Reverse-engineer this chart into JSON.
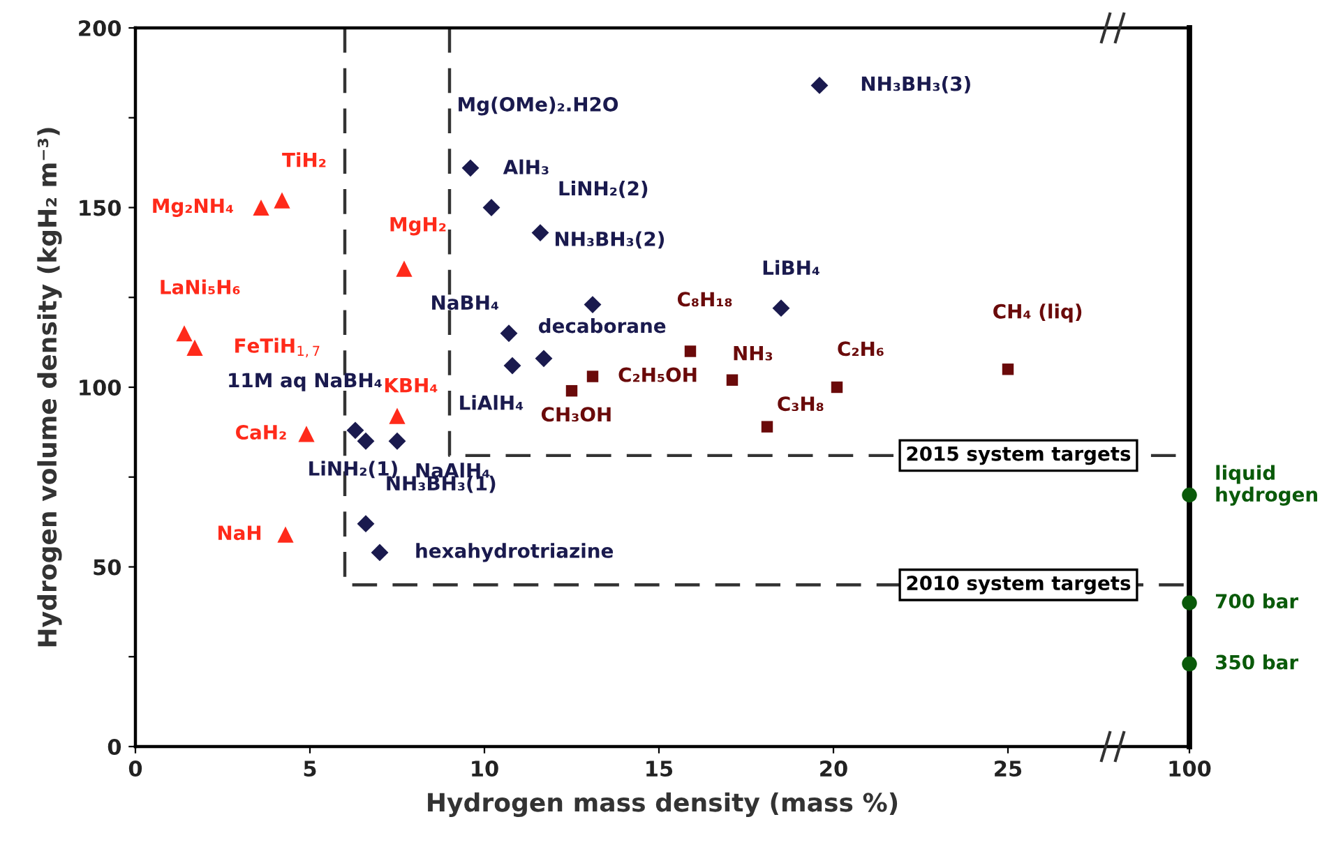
{
  "chart_data": [
    {
      "type": "scatter",
      "xlabel": "Hydrogen mass density (mass %)",
      "ylabel": "Hydrogen volume density (kgH₂ m⁻³)",
      "xlim": [
        0,
        30.2
      ],
      "xticks": [
        0,
        5,
        10,
        15,
        20,
        25
      ],
      "ylim": [
        0,
        200
      ],
      "yticks": [
        0,
        {
          "value": 25,
          "label": null
        },
        50,
        {
          "value": 75,
          "label": null
        },
        100,
        {
          "value": 125,
          "label": null
        },
        150,
        {
          "value": 175,
          "label": null
        },
        200
      ],
      "series": [
        {
          "marker": "triangle",
          "color": "#ff2a1a",
          "x": [
            3.6,
            4.2,
            7.7,
            1.4,
            1.7,
            4.9,
            7.5,
            4.3
          ],
          "values": [
            150,
            152,
            133,
            115,
            111,
            87,
            92,
            59
          ]
        },
        {
          "marker": "diamond",
          "color": "#1a1a4e",
          "x": [
            6.3,
            6.6,
            7.5,
            6.6,
            7.0,
            9.6,
            10.2,
            11.6,
            10.7,
            10.8,
            11.7,
            13.1,
            18.5,
            19.6
          ],
          "values": [
            88,
            85,
            85,
            62,
            54,
            161,
            150,
            143,
            115,
            106,
            108,
            123,
            122,
            184
          ]
        },
        {
          "marker": "square",
          "color": "#6a0a0a",
          "x": [
            12.5,
            13.1,
            15.9,
            17.1,
            18.1,
            20.1,
            25.0
          ],
          "values": [
            99,
            103,
            110,
            102,
            89,
            100,
            105
          ]
        },
        {
          "type": "line",
          "marker": "none",
          "line_style": "dashed",
          "color": "#333333",
          "x": [
            6,
            6,
            30.2
          ],
          "values": [
            200,
            45,
            45
          ]
        },
        {
          "type": "line",
          "marker": "none",
          "line_style": "dashed",
          "color": "#333333",
          "x": [
            9,
            9,
            30.2
          ],
          "values": [
            200,
            81,
            81
          ]
        }
      ],
      "annotations": [
        {
          "text": "Mg₂NH₄",
          "x": 3.6,
          "y": 150
        },
        {
          "text": "TiH₂",
          "x": 4.2,
          "y": 152
        },
        {
          "text": "MgH₂",
          "x": 7.7,
          "y": 133
        },
        {
          "text": "LaNi₅H₆",
          "x": 1.4,
          "y": 115
        },
        {
          "text": "FeTiH$_{1,7}$",
          "x": 1.7,
          "y": 111
        },
        {
          "text": "CaH₂",
          "x": 4.9,
          "y": 87
        },
        {
          "text": "KBH₄",
          "x": 7.5,
          "y": 92
        },
        {
          "text": "NaH",
          "x": 4.3,
          "y": 59
        },
        {
          "text": "11M aq NaBH₄",
          "x": 6.3,
          "y": 88
        },
        {
          "text": "LiNH₂(1)",
          "x": 6.6,
          "y": 85
        },
        {
          "text": "NaAlH₄",
          "x": 7.5,
          "y": 85
        },
        {
          "text": "NH₃BH₃(1)",
          "x": 6.6,
          "y": 62
        },
        {
          "text": "hexahydrotriazine",
          "x": 7.0,
          "y": 54
        },
        {
          "text": "Mg(OMe)₂.H2O",
          "x": 9.6,
          "y": 161
        },
        {
          "text": "AlH₃",
          "x": 10.2,
          "y": 150
        },
        {
          "text": "LiNH₂(2)",
          "x": 11.6,
          "y": 143
        },
        {
          "text": "NaBH₄",
          "x": 10.7,
          "y": 115
        },
        {
          "text": "LiAlH₄",
          "x": 10.8,
          "y": 106
        },
        {
          "text": "decaborane",
          "x": 11.7,
          "y": 108
        },
        {
          "text": "NH₃BH₃(2)",
          "x": 13.1,
          "y": 123
        },
        {
          "text": "LiBH₄",
          "x": 18.5,
          "y": 122
        },
        {
          "text": "NH₃BH₃(3)",
          "x": 19.6,
          "y": 184
        },
        {
          "text": "CH₃OH",
          "x": 12.5,
          "y": 99
        },
        {
          "text": "C₂H₅OH",
          "x": 13.1,
          "y": 103
        },
        {
          "text": "C₈H₁₈",
          "x": 15.9,
          "y": 110
        },
        {
          "text": "NH₃",
          "x": 17.1,
          "y": 102
        },
        {
          "text": "C₃H₈",
          "x": 18.1,
          "y": 89
        },
        {
          "text": "C₂H₆",
          "x": 20.1,
          "y": 100
        },
        {
          "text": "CH₄ (liq)",
          "x": 25.0,
          "y": 105
        },
        {
          "text": "2015 system targets",
          "x": 25.3,
          "y": 81
        },
        {
          "text": "2010 system targets",
          "x": 25.3,
          "y": 45
        }
      ]
    },
    {
      "type": "scatter",
      "tick_labels": "x",
      "categories": [
        "100"
      ],
      "ylim": [
        0,
        200
      ],
      "series": [
        {
          "marker": "circle",
          "color": "#0a5a0a",
          "x": [
            "100",
            "100",
            "100"
          ],
          "values": [
            70,
            40,
            23
          ]
        }
      ],
      "annotations": [
        {
          "text": "liquid\nhydrogen",
          "x": "100",
          "y": 70
        },
        {
          "text": "700 bar",
          "x": "100",
          "y": 40
        },
        {
          "text": "350 bar",
          "x": "100",
          "y": 23
        }
      ]
    }
  ]
}
